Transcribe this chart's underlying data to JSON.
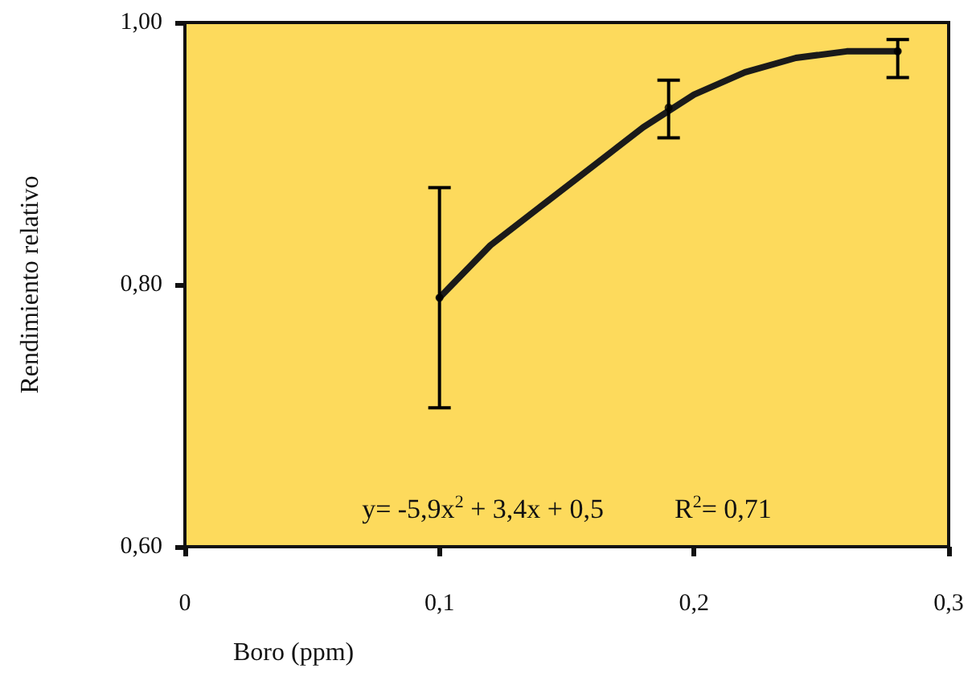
{
  "chart_data": {
    "type": "line",
    "xlabel": "Boro (ppm)",
    "ylabel": "Rendimiento relativo",
    "xlim": [
      0,
      0.3
    ],
    "xticks": [
      {
        "value": 0,
        "label": "0"
      },
      {
        "value": 0.1,
        "label": "0,1"
      },
      {
        "value": 0.2,
        "label": "0,2"
      },
      {
        "value": 0.3,
        "label": "0,3"
      }
    ],
    "ylim": [
      0.6,
      1.0
    ],
    "yticks": [
      {
        "value": 0.6,
        "label": "0,60"
      },
      {
        "value": 0.8,
        "label": "0,80"
      },
      {
        "value": 1.0,
        "label": "1,00"
      }
    ],
    "grid": false,
    "marker": "none",
    "line_style": "solid",
    "series": [
      {
        "color": "#1a1a1a",
        "x": [
          0.1,
          0.12,
          0.14,
          0.16,
          0.18,
          0.2,
          0.22,
          0.24,
          0.26,
          0.28
        ],
        "values": [
          0.79,
          0.83,
          0.86,
          0.89,
          0.92,
          0.945,
          0.962,
          0.973,
          0.978,
          0.978
        ]
      },
      {
        "type": "scatter",
        "marker": "circle",
        "color": "#000000",
        "x": [
          0.1,
          0.19,
          0.28
        ],
        "values": [
          0.79,
          0.935,
          0.978
        ],
        "errors": [
          [
            0.706,
            0.874
          ],
          [
            0.912,
            0.956
          ],
          [
            0.958,
            0.987
          ]
        ]
      }
    ],
    "annotations": [
      "y= -5,9x$^{2}$ + 3,4x + 0,5",
      "R$^{2}$= 0,71"
    ]
  }
}
